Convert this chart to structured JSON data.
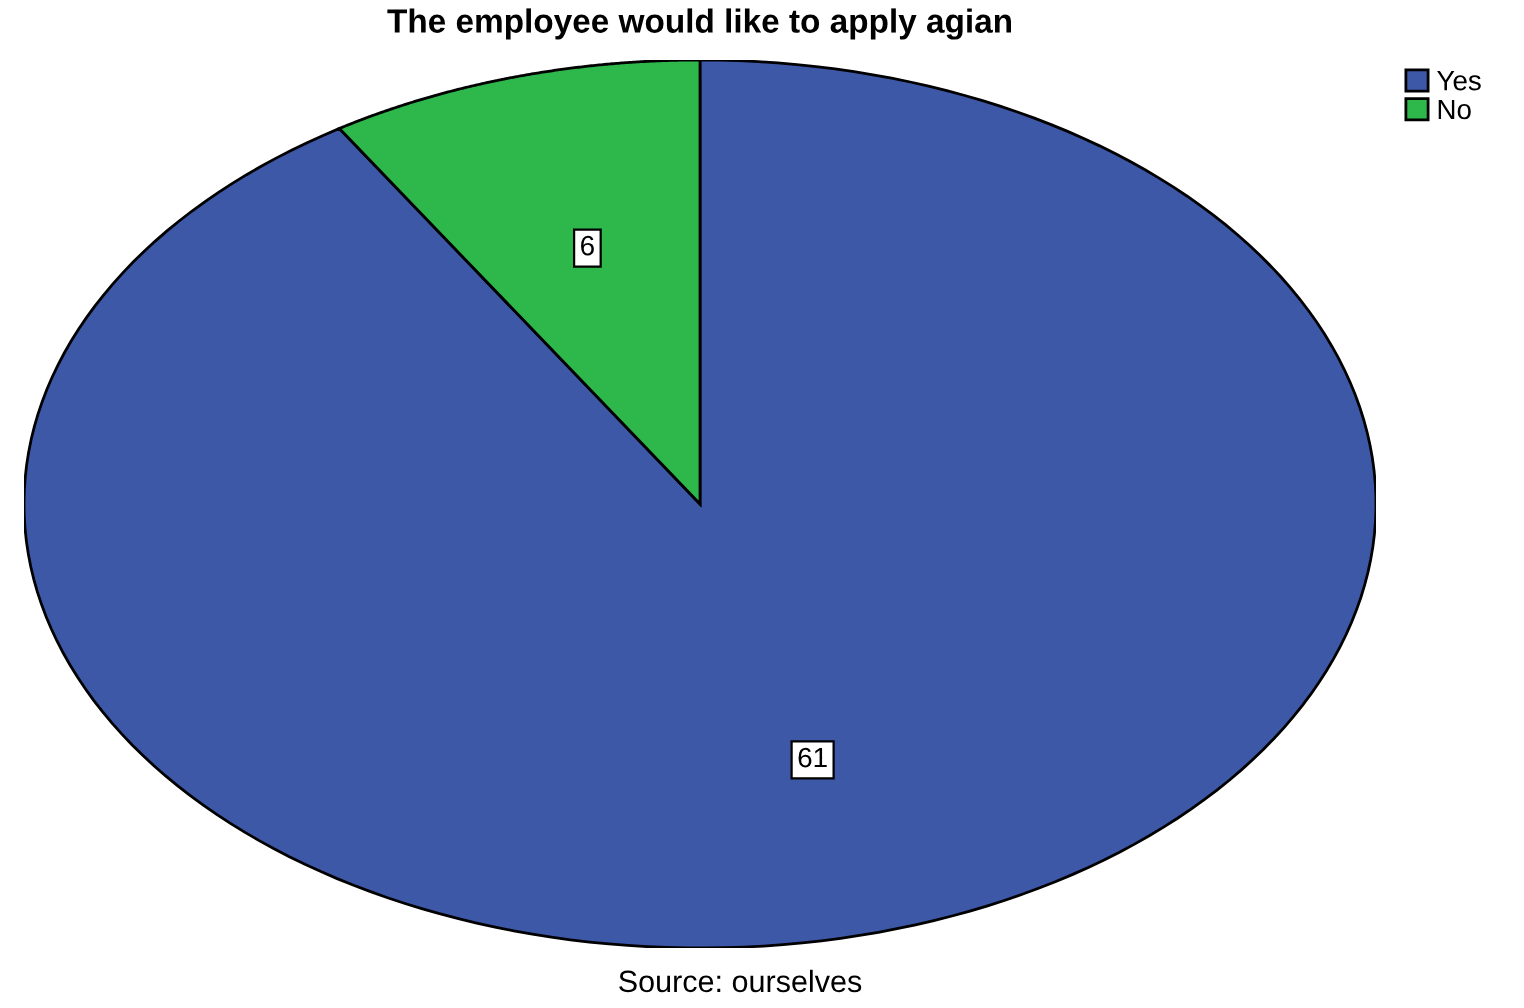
{
  "chart_data": {
    "type": "pie",
    "title": "The employee would like to apply agian",
    "categories": [
      "Yes",
      "No"
    ],
    "values": [
      61,
      6
    ],
    "colors": [
      "#3e58a8",
      "#2eb84b"
    ],
    "data_labels": true,
    "legend": "top right",
    "annotations": [
      "Source: ourselves"
    ]
  }
}
